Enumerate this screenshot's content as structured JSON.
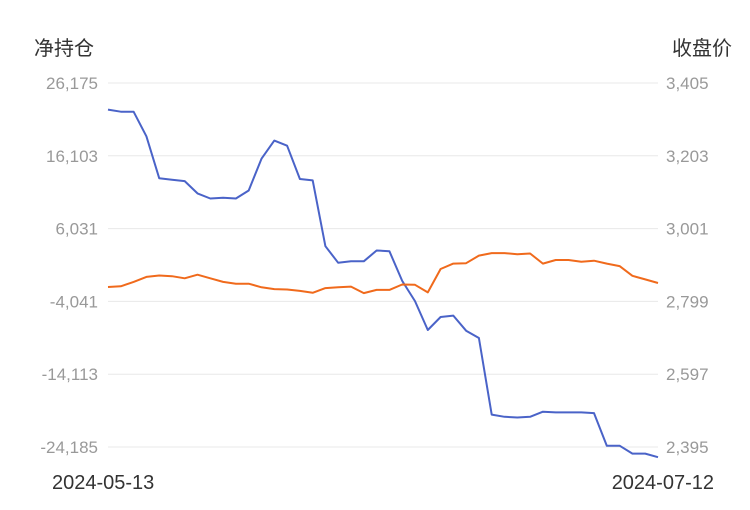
{
  "chart_data": {
    "type": "line",
    "left_axis_title": "净持仓",
    "right_axis_title": "收盘价",
    "left_ticks": [
      "26,175",
      "16,103",
      "6,031",
      "-4,041",
      "-14,113",
      "-24,185"
    ],
    "right_ticks": [
      "3,405",
      "3,203",
      "3,001",
      "2,799",
      "2,597",
      "2,395"
    ],
    "left_ylim": [
      -24185,
      26175
    ],
    "right_ylim": [
      2395,
      3405
    ],
    "grid": true,
    "x_start_label": "2024-05-13",
    "x_end_label": "2024-07-12",
    "series": [
      {
        "axis": "left",
        "color": "#4a63c8",
        "values": [
          22500,
          22200,
          22200,
          18800,
          13000,
          12800,
          12600,
          10900,
          10200,
          10300,
          10200,
          11300,
          15700,
          18200,
          17500,
          12900,
          12700,
          3600,
          1300,
          1500,
          1500,
          3000,
          2900,
          -1200,
          -4000,
          -8000,
          -6200,
          -6000,
          -8100,
          -9100,
          -19700,
          -20000,
          -20100,
          -20000,
          -19300,
          -19400,
          -19400,
          -19400,
          -19500,
          -24000,
          -24000,
          -25100,
          -25100,
          -25600
        ]
      },
      {
        "axis": "right",
        "color": "#f06a1c",
        "values": [
          2839,
          2841,
          2853,
          2867,
          2871,
          2869,
          2863,
          2873,
          2863,
          2853,
          2848,
          2848,
          2838,
          2833,
          2832,
          2828,
          2823,
          2836,
          2838,
          2840,
          2822,
          2831,
          2831,
          2846,
          2845,
          2824,
          2889,
          2904,
          2905,
          2926,
          2933,
          2933,
          2930,
          2932,
          2904,
          2914,
          2914,
          2909,
          2912,
          2904,
          2897,
          2870,
          2860,
          2850
        ]
      }
    ]
  }
}
